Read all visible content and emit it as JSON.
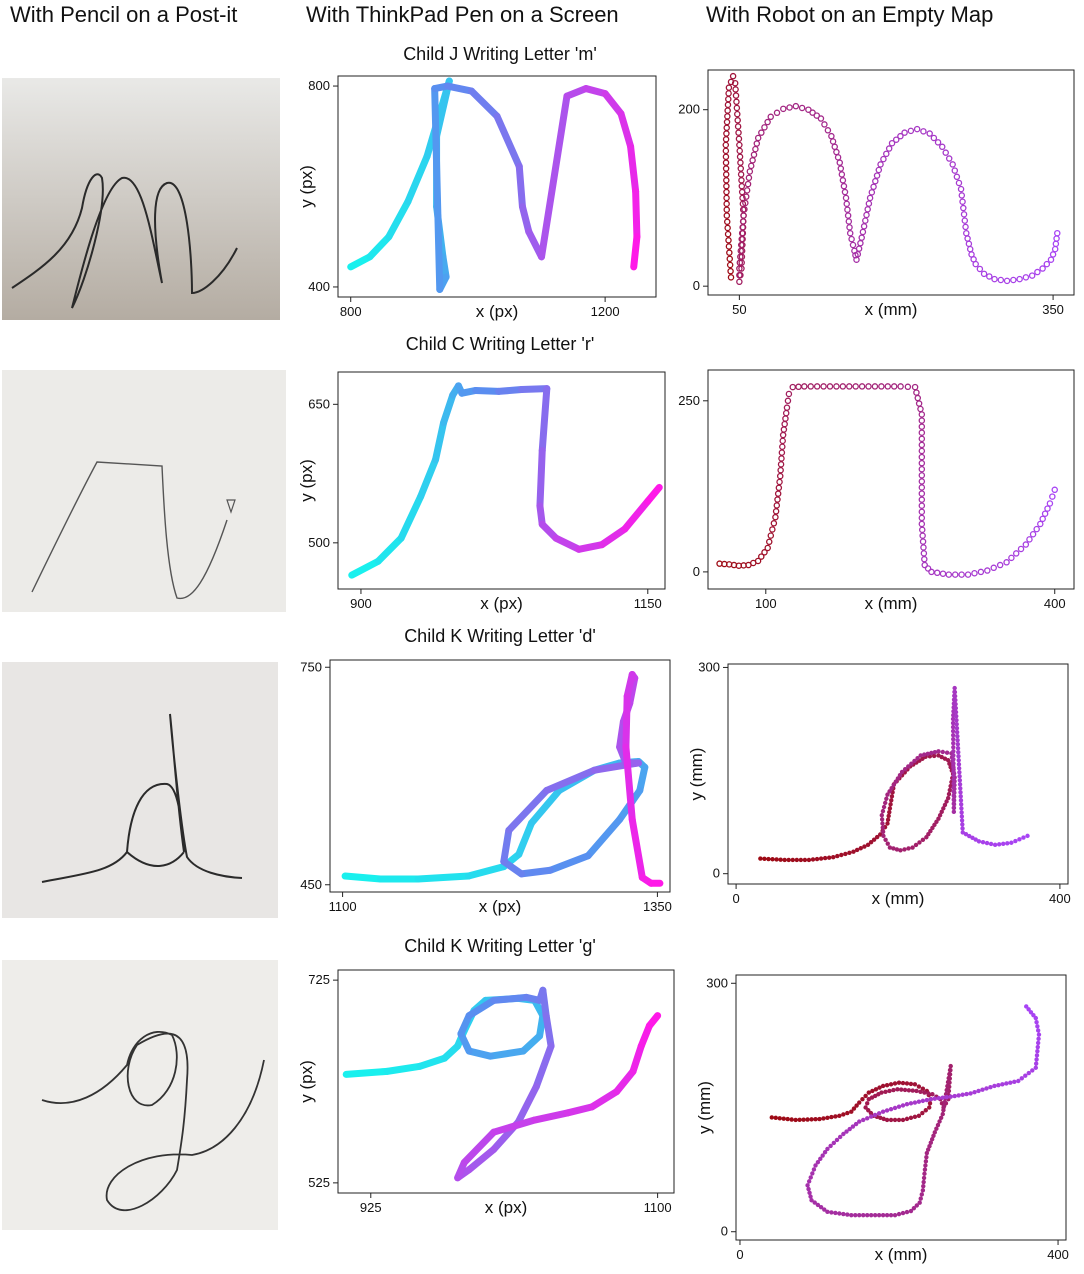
{
  "headers": {
    "col1": "With Pencil on a Post-it",
    "col2": "With ThinkPad Pen on a Screen",
    "col3": "With Robot on an Empty Map"
  },
  "rows": [
    {
      "title": "Child J Writing Letter 'm'"
    },
    {
      "title": "Child C Writing Letter 'r'"
    },
    {
      "title": "Child K Writing Letter 'd'"
    },
    {
      "title": "Child K Writing Letter 'g'"
    }
  ],
  "colors": {
    "pen_start": "#19f0ee",
    "pen_mid": "#5a8df0",
    "pen_end": "#ff18e8",
    "robot_start": "#9e0a14",
    "robot_end": "#a844f5",
    "pencil": "#2a2a2a"
  },
  "chart_data": [
    {
      "type": "line",
      "id": "pen-m",
      "xlabel": "x (px)",
      "ylabel": "y (px)",
      "xlim": [
        780,
        1280
      ],
      "ylim": [
        380,
        820
      ],
      "xticks": [
        800,
        1200
      ],
      "yticks": [
        400,
        800
      ],
      "x": [
        800,
        830,
        860,
        890,
        920,
        955,
        935,
        935,
        945,
        950,
        940,
        932,
        952,
        990,
        1030,
        1065,
        1070,
        1080,
        1100,
        1140,
        1170,
        1200,
        1225,
        1240,
        1248,
        1250,
        1245
      ],
      "y": [
        440,
        460,
        500,
        570,
        660,
        810,
        700,
        560,
        460,
        420,
        395,
        795,
        800,
        790,
        740,
        640,
        560,
        510,
        460,
        780,
        795,
        785,
        745,
        680,
        590,
        500,
        440
      ]
    },
    {
      "type": "scatter",
      "id": "robot-m",
      "xlabel": "x (mm)",
      "ylabel": "",
      "marker": "ring",
      "xlim": [
        20,
        370
      ],
      "ylim": [
        -10,
        245
      ],
      "xticks": [
        50,
        350
      ],
      "yticks": [
        0,
        200
      ],
      "x": [
        42,
        38,
        37,
        40,
        44,
        46,
        50,
        54,
        52,
        50,
        50,
        54,
        60,
        68,
        80,
        92,
        104,
        116,
        128,
        138,
        146,
        152,
        156,
        160,
        162,
        167,
        175,
        185,
        196,
        208,
        220,
        232,
        244,
        254,
        262,
        267,
        272,
        276,
        284,
        294,
        306,
        318,
        330,
        340,
        348,
        352,
        354
      ],
      "y": [
        10,
        80,
        160,
        225,
        238,
        230,
        160,
        80,
        20,
        5,
        20,
        80,
        130,
        168,
        192,
        201,
        204,
        200,
        190,
        170,
        140,
        100,
        60,
        40,
        30,
        55,
        100,
        138,
        162,
        174,
        178,
        173,
        158,
        138,
        110,
        60,
        36,
        25,
        14,
        8,
        6,
        8,
        12,
        20,
        30,
        42,
        60
      ]
    },
    {
      "type": "line",
      "id": "pen-r",
      "xlabel": "x (px)",
      "ylabel": "y (px)",
      "xlim": [
        880,
        1165
      ],
      "ylim": [
        450,
        685
      ],
      "xticks": [
        900,
        1150
      ],
      "yticks": [
        500,
        650
      ],
      "x": [
        892,
        915,
        935,
        952,
        965,
        972,
        980,
        985,
        988,
        1000,
        1020,
        1040,
        1062,
        1058,
        1056,
        1058,
        1070,
        1090,
        1110,
        1130,
        1150,
        1160
      ],
      "y": [
        465,
        480,
        505,
        550,
        590,
        630,
        660,
        670,
        662,
        665,
        664,
        666,
        667,
        600,
        540,
        520,
        505,
        493,
        498,
        515,
        545,
        560
      ]
    },
    {
      "type": "scatter",
      "id": "robot-r",
      "xlabel": "x (mm)",
      "ylabel": "",
      "marker": "ring",
      "xlim": [
        40,
        420
      ],
      "ylim": [
        -25,
        295
      ],
      "xticks": [
        100,
        400
      ],
      "yticks": [
        0,
        250
      ],
      "x": [
        52,
        62,
        72,
        82,
        92,
        102,
        110,
        115,
        118,
        122,
        124,
        128,
        140,
        160,
        180,
        200,
        220,
        240,
        255,
        262,
        262,
        262,
        265,
        272,
        290,
        310,
        330,
        350,
        370,
        385,
        395,
        400
      ],
      "y": [
        12,
        11,
        9,
        10,
        16,
        35,
        80,
        140,
        200,
        240,
        260,
        270,
        271,
        271,
        271,
        271,
        271,
        271,
        270,
        230,
        150,
        70,
        10,
        0,
        -4,
        -4,
        2,
        14,
        40,
        70,
        100,
        120
      ]
    },
    {
      "type": "line",
      "id": "pen-d",
      "xlabel": "x (px)",
      "ylabel": "",
      "xlim": [
        1090,
        1360
      ],
      "ylim": [
        440,
        760
      ],
      "xticks": [
        1100,
        1350
      ],
      "yticks": [
        450,
        750
      ],
      "x": [
        1102,
        1130,
        1160,
        1200,
        1228,
        1240,
        1250,
        1272,
        1300,
        1320,
        1335,
        1340,
        1336,
        1320,
        1295,
        1265,
        1242,
        1228,
        1232,
        1262,
        1300,
        1335,
        1325,
        1320,
        1323,
        1328,
        1332,
        1330,
        1326,
        1325,
        1330,
        1338,
        1345,
        1352
      ],
      "y": [
        462,
        458,
        458,
        462,
        475,
        492,
        535,
        580,
        608,
        618,
        620,
        612,
        580,
        540,
        490,
        470,
        465,
        482,
        525,
        580,
        608,
        618,
        618,
        640,
        675,
        700,
        735,
        740,
        710,
        640,
        540,
        460,
        452,
        452
      ]
    },
    {
      "type": "scatter",
      "id": "robot-d",
      "xlabel": "x (mm)",
      "ylabel": "y (mm)",
      "marker": "dot",
      "xlim": [
        -10,
        410
      ],
      "ylim": [
        -15,
        305
      ],
      "xticks": [
        0,
        400
      ],
      "yticks": [
        0,
        300
      ],
      "x": [
        30,
        60,
        90,
        120,
        145,
        163,
        178,
        187,
        190,
        195,
        215,
        234,
        250,
        262,
        268,
        262,
        250,
        235,
        218,
        203,
        190,
        182,
        180,
        187,
        205,
        228,
        250,
        266,
        270,
        269,
        268,
        270,
        280,
        300,
        320,
        340,
        360
      ],
      "y": [
        22,
        20,
        20,
        24,
        32,
        42,
        57,
        73,
        95,
        130,
        156,
        170,
        172,
        165,
        145,
        110,
        80,
        53,
        38,
        34,
        38,
        55,
        85,
        115,
        148,
        172,
        178,
        175,
        140,
        90,
        225,
        270,
        60,
        47,
        42,
        45,
        55
      ]
    },
    {
      "type": "line",
      "id": "pen-g",
      "xlabel": "x (px)",
      "ylabel": "y (px)",
      "xlim": [
        905,
        1110
      ],
      "ylim": [
        515,
        735
      ],
      "xticks": [
        925,
        1100
      ],
      "yticks": [
        525,
        725
      ],
      "x": [
        910,
        935,
        955,
        970,
        978,
        982,
        988,
        995,
        1015,
        1025,
        1030,
        1028,
        1018,
        998,
        985,
        980,
        985,
        1000,
        1020,
        1028,
        1030,
        1032,
        1035,
        1026,
        1015,
        1000,
        985,
        978,
        982,
        1000,
        1025,
        1045,
        1060,
        1075,
        1085,
        1090,
        1095,
        1100
      ],
      "y": [
        632,
        635,
        640,
        648,
        660,
        675,
        695,
        705,
        707,
        705,
        690,
        670,
        655,
        650,
        655,
        672,
        690,
        705,
        708,
        705,
        715,
        690,
        660,
        620,
        585,
        558,
        538,
        530,
        545,
        575,
        587,
        594,
        600,
        615,
        635,
        660,
        680,
        690
      ]
    },
    {
      "type": "scatter",
      "id": "robot-g",
      "xlabel": "x (mm)",
      "ylabel": "y (mm)",
      "marker": "dot",
      "xlim": [
        -5,
        410
      ],
      "ylim": [
        -10,
        310
      ],
      "xticks": [
        0,
        400
      ],
      "yticks": [
        0,
        300
      ],
      "x": [
        40,
        70,
        100,
        125,
        140,
        150,
        162,
        180,
        200,
        220,
        235,
        240,
        238,
        225,
        205,
        185,
        168,
        158,
        162,
        178,
        198,
        222,
        242,
        252,
        256,
        262,
        265,
        255,
        245,
        235,
        232,
        230,
        226,
        215,
        195,
        170,
        140,
        110,
        90,
        85,
        95,
        110,
        130,
        150,
        180,
        210,
        240,
        265,
        290,
        320,
        350,
        372,
        376,
        372,
        360
      ],
      "y": [
        138,
        135,
        136,
        140,
        145,
        156,
        168,
        176,
        180,
        178,
        170,
        160,
        150,
        140,
        135,
        135,
        140,
        150,
        160,
        168,
        172,
        170,
        166,
        160,
        150,
        160,
        200,
        142,
        120,
        95,
        70,
        50,
        35,
        25,
        20,
        20,
        20,
        24,
        38,
        56,
        80,
        100,
        118,
        133,
        145,
        154,
        160,
        163,
        167,
        176,
        182,
        198,
        238,
        258,
        272
      ]
    }
  ]
}
